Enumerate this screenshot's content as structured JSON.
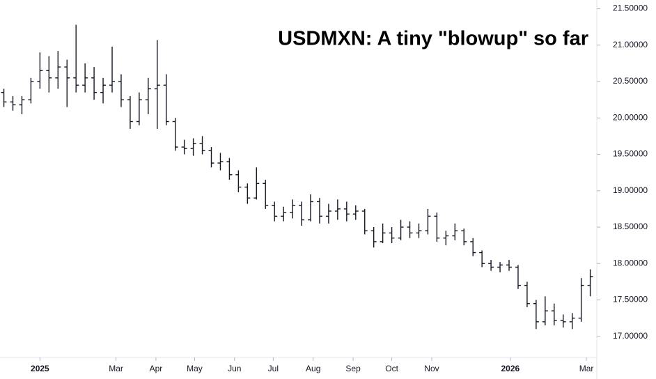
{
  "chart_data": {
    "type": "ohlc",
    "title": "USDMXN: A tiny \"blowup\" so far",
    "color": "#131722",
    "x": [
      -28,
      -21,
      -14,
      -7,
      0,
      7,
      14,
      21,
      28,
      35,
      42,
      49,
      56,
      63,
      70,
      77,
      84,
      91,
      98,
      105,
      112,
      119,
      126,
      133,
      140,
      147,
      154,
      161,
      168,
      175,
      182,
      189,
      196,
      203,
      210,
      217,
      224,
      231,
      238,
      245,
      252,
      259,
      266,
      273,
      280,
      287,
      294,
      301,
      308,
      315,
      322,
      329,
      336,
      343,
      350,
      357,
      364,
      371,
      378,
      385,
      392,
      399,
      406,
      413,
      420,
      427
    ],
    "open": [
      20.35,
      20.22,
      20.18,
      20.25,
      20.5,
      20.65,
      20.55,
      20.7,
      20.55,
      20.45,
      20.55,
      20.35,
      20.45,
      20.5,
      20.25,
      19.95,
      20.25,
      20.4,
      20.45,
      19.95,
      19.6,
      19.58,
      19.65,
      19.55,
      19.38,
      19.4,
      19.22,
      19.05,
      18.9,
      19.1,
      18.8,
      18.65,
      18.7,
      18.8,
      18.6,
      18.85,
      18.65,
      18.72,
      18.75,
      18.68,
      18.72,
      18.45,
      18.3,
      18.42,
      18.35,
      18.5,
      18.42,
      18.45,
      18.65,
      18.35,
      18.38,
      18.45,
      18.3,
      18.15,
      18.0,
      17.95,
      17.98,
      17.95,
      17.7,
      17.45,
      17.2,
      17.35,
      17.22,
      17.2,
      17.25,
      17.7
    ],
    "high": [
      20.4,
      20.3,
      20.3,
      20.55,
      20.9,
      20.85,
      20.92,
      20.8,
      21.28,
      20.75,
      20.7,
      20.55,
      20.98,
      20.6,
      20.3,
      20.35,
      20.55,
      21.07,
      20.6,
      20.0,
      19.7,
      19.72,
      19.75,
      19.6,
      19.52,
      19.45,
      19.28,
      19.1,
      19.32,
      19.15,
      18.85,
      18.78,
      18.88,
      18.85,
      18.95,
      18.9,
      18.82,
      18.88,
      18.85,
      18.8,
      18.75,
      18.5,
      18.55,
      18.5,
      18.6,
      18.58,
      18.55,
      18.75,
      18.7,
      18.45,
      18.55,
      18.48,
      18.35,
      18.18,
      18.05,
      18.02,
      18.05,
      17.98,
      17.75,
      17.5,
      17.55,
      17.45,
      17.3,
      17.32,
      17.8,
      17.92
    ],
    "low": [
      20.15,
      20.1,
      20.05,
      20.2,
      20.4,
      20.35,
      20.4,
      20.15,
      20.35,
      20.35,
      20.25,
      20.2,
      20.35,
      20.15,
      19.85,
      19.9,
      20.05,
      19.85,
      19.9,
      19.55,
      19.5,
      19.48,
      19.5,
      19.32,
      19.28,
      19.15,
      18.98,
      18.82,
      18.88,
      18.75,
      18.58,
      18.58,
      18.62,
      18.52,
      18.58,
      18.55,
      18.55,
      18.6,
      18.58,
      18.6,
      18.4,
      18.22,
      18.28,
      18.28,
      18.32,
      18.35,
      18.35,
      18.4,
      18.3,
      18.25,
      18.32,
      18.25,
      18.1,
      17.95,
      17.9,
      17.88,
      17.9,
      17.65,
      17.4,
      17.1,
      17.15,
      17.15,
      17.12,
      17.1,
      17.2,
      17.55
    ],
    "close": [
      20.22,
      20.18,
      20.25,
      20.5,
      20.65,
      20.55,
      20.7,
      20.55,
      20.45,
      20.55,
      20.35,
      20.45,
      20.5,
      20.25,
      19.95,
      20.25,
      20.4,
      20.45,
      19.95,
      19.6,
      19.58,
      19.65,
      19.55,
      19.38,
      19.4,
      19.22,
      19.05,
      18.9,
      19.1,
      18.8,
      18.65,
      18.7,
      18.8,
      18.6,
      18.85,
      18.65,
      18.72,
      18.75,
      18.68,
      18.72,
      18.45,
      18.3,
      18.42,
      18.35,
      18.5,
      18.42,
      18.45,
      18.65,
      18.35,
      18.38,
      18.45,
      18.3,
      18.15,
      18.0,
      17.95,
      17.98,
      17.95,
      17.7,
      17.45,
      17.2,
      17.35,
      17.22,
      17.2,
      17.25,
      17.7,
      17.82
    ],
    "xlim": [
      -31,
      431
    ],
    "xticks": [
      {
        "value": 0,
        "label": "2025"
      },
      {
        "value": 59,
        "label": "Mar"
      },
      {
        "value": 90,
        "label": "Apr"
      },
      {
        "value": 120,
        "label": "May"
      },
      {
        "value": 151,
        "label": "Jun"
      },
      {
        "value": 181,
        "label": "Jul"
      },
      {
        "value": 212,
        "label": "Aug"
      },
      {
        "value": 243,
        "label": "Sep"
      },
      {
        "value": 273,
        "label": "Oct"
      },
      {
        "value": 304,
        "label": "Nov"
      },
      {
        "value": 365,
        "label": "2026"
      },
      {
        "value": 424,
        "label": "Mar"
      }
    ],
    "ylim": [
      16.72,
      21.62
    ],
    "yticks": [
      {
        "value": 17,
        "label": "17.00000"
      },
      {
        "value": 17.5,
        "label": "17.50000"
      },
      {
        "value": 18,
        "label": "18.00000"
      },
      {
        "value": 18.5,
        "label": "18.50000"
      },
      {
        "value": 19,
        "label": "19.00000"
      },
      {
        "value": 19.5,
        "label": "19.50000"
      },
      {
        "value": 20,
        "label": "20.00000"
      },
      {
        "value": 20.5,
        "label": "20.50000"
      },
      {
        "value": 21,
        "label": "21.00000"
      },
      {
        "value": 21.5,
        "label": "21.50000"
      }
    ]
  }
}
